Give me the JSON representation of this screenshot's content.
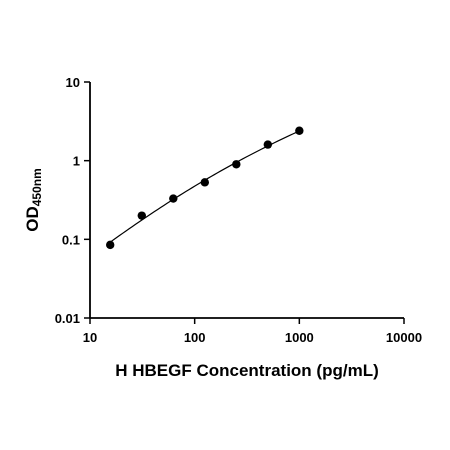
{
  "chart_data": {
    "type": "scatter",
    "title": "",
    "xlabel": "H HBEGF Concentration (pg/mL)",
    "ylabel_main": "OD",
    "ylabel_sub": "450nm",
    "xscale": "log",
    "yscale": "log",
    "xlim": [
      10,
      10000
    ],
    "ylim": [
      0.01,
      10
    ],
    "xticks": [
      "10",
      "100",
      "1000",
      "10000"
    ],
    "yticks": [
      "10",
      "1",
      "0.1",
      "0.01"
    ],
    "grid": false,
    "legend": "none",
    "series": [
      {
        "x": [
          15.6,
          31.25,
          62.5,
          125,
          250,
          500,
          1000
        ],
        "y": [
          0.085,
          0.2,
          0.33,
          0.53,
          0.9,
          1.6,
          2.4
        ],
        "fit_line": true
      }
    ]
  }
}
